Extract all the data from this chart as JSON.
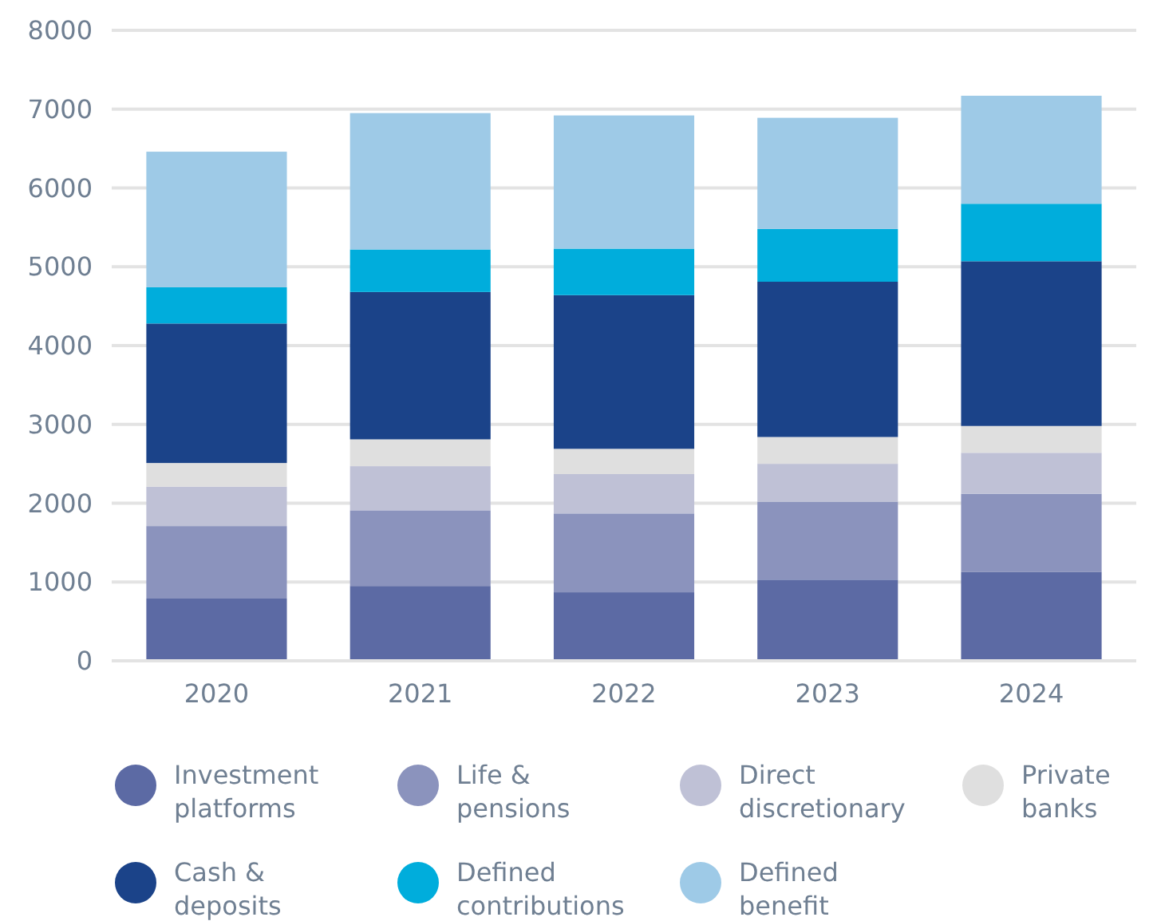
{
  "chart_data": {
    "type": "bar",
    "stacked": true,
    "categories": [
      "2020",
      "2021",
      "2022",
      "2023",
      "2024"
    ],
    "series": [
      {
        "name": "Investment platforms",
        "color": "#5c6aa4",
        "values": [
          790,
          950,
          870,
          1030,
          1130
        ]
      },
      {
        "name": "Life & pensions",
        "color": "#8b93bd",
        "values": [
          920,
          960,
          1000,
          990,
          990
        ]
      },
      {
        "name": "Direct discretionary",
        "color": "#bfc1d6",
        "values": [
          500,
          560,
          500,
          480,
          520
        ]
      },
      {
        "name": "Private banks",
        "color": "#dfdfdf",
        "values": [
          300,
          340,
          320,
          340,
          340
        ]
      },
      {
        "name": "Cash & deposits",
        "color": "#1b4389",
        "values": [
          1770,
          1870,
          1950,
          1970,
          2090
        ]
      },
      {
        "name": "Defined contributions",
        "color": "#00addc",
        "values": [
          460,
          540,
          590,
          670,
          730
        ]
      },
      {
        "name": "Defined benefit",
        "color": "#9ecae7",
        "values": [
          1720,
          1730,
          1690,
          1410,
          1370
        ]
      }
    ],
    "ylim": [
      0,
      8000
    ],
    "yticks": [
      0,
      1000,
      2000,
      3000,
      4000,
      5000,
      6000,
      7000,
      8000
    ],
    "grid": "y",
    "legend": "bottom"
  }
}
